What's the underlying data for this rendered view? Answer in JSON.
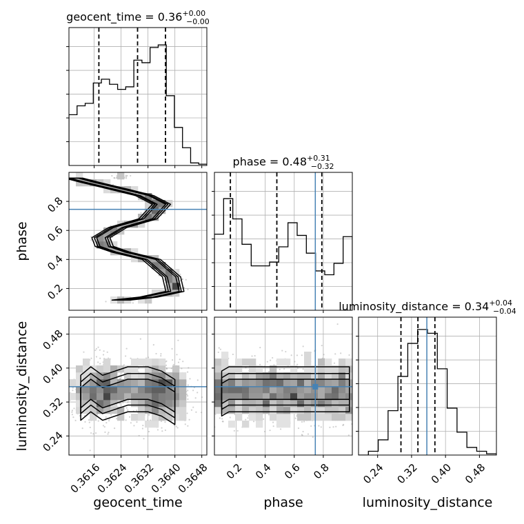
{
  "chart_data": {
    "type": "corner",
    "parameters": [
      "geocent_time",
      "phase",
      "luminosity_distance"
    ],
    "axis_labels": {
      "geocent_time": "geocent_time",
      "phase": "phase",
      "luminosity_distance": "luminosity_distance"
    },
    "ranges": {
      "geocent_time": [
        0.36085,
        0.36495
      ],
      "phase": [
        0.05,
        1.0
      ],
      "luminosity_distance": [
        0.195,
        0.52
      ]
    },
    "ticks": {
      "geocent_time": [
        "0.3616",
        "0.3624",
        "0.3632",
        "0.3640",
        "0.3648"
      ],
      "phase": [
        "0.2",
        "0.4",
        "0.6",
        "0.8"
      ],
      "luminosity_distance": [
        "0.24",
        "0.32",
        "0.40",
        "0.48"
      ]
    },
    "truth": {
      "phase": 0.745,
      "luminosity_distance": 0.356
    },
    "truth_color": "#4682b4",
    "grid": true,
    "marginals": [
      {
        "parameter": "geocent_time",
        "title_name": "geocent_time",
        "title_value": "0.36",
        "title_plus": "+0.00",
        "title_minus": "−0.00",
        "quantiles": [
          0.36174,
          0.36289,
          0.36372
        ],
        "hist": [
          0.4,
          0.47,
          0.49,
          0.65,
          0.68,
          0.64,
          0.6,
          0.62,
          0.83,
          0.81,
          0.93,
          0.95,
          0.55,
          0.3,
          0.14,
          0.02,
          0.01
        ],
        "hist_max": 1.0
      },
      {
        "parameter": "phase",
        "title_name": "phase",
        "title_value": "0.48",
        "title_plus": "+0.31",
        "title_minus": "−0.32",
        "quantiles": [
          0.16,
          0.48,
          0.79
        ],
        "hist": [
          0.6,
          0.88,
          0.72,
          0.52,
          0.35,
          0.35,
          0.38,
          0.5,
          0.69,
          0.59,
          0.45,
          0.31,
          0.28,
          0.37,
          0.58
        ],
        "hist_max": 1.0
      },
      {
        "parameter": "luminosity_distance",
        "title_name": "luminosity_distance",
        "title_value": "0.34",
        "title_plus": "+0.04",
        "title_minus": "−0.04",
        "quantiles": [
          0.295,
          0.335,
          0.375
        ],
        "hist": [
          0.0,
          0.03,
          0.12,
          0.35,
          0.62,
          0.88,
          0.99,
          0.96,
          0.68,
          0.37,
          0.18,
          0.06,
          0.03,
          0.01
        ],
        "hist_max": 1.0
      }
    ],
    "joint": [
      {
        "x": "geocent_time",
        "y": "phase",
        "description_points": [
          [
            0.361,
            0.96
          ],
          [
            0.3615,
            0.93
          ],
          [
            0.3624,
            0.88
          ],
          [
            0.3631,
            0.84
          ],
          [
            0.3636,
            0.78
          ],
          [
            0.3632,
            0.68
          ],
          [
            0.3623,
            0.62
          ],
          [
            0.3618,
            0.55
          ],
          [
            0.3619,
            0.49
          ],
          [
            0.3624,
            0.45
          ],
          [
            0.3633,
            0.4
          ],
          [
            0.3639,
            0.28
          ],
          [
            0.364,
            0.18
          ],
          [
            0.3632,
            0.14
          ],
          [
            0.3624,
            0.12
          ]
        ]
      },
      {
        "x": "geocent_time",
        "y": "luminosity_distance",
        "description_points": [
          [
            0.3612,
            0.33
          ],
          [
            0.3615,
            0.35
          ],
          [
            0.36185,
            0.33
          ],
          [
            0.3626,
            0.35
          ],
          [
            0.3632,
            0.35
          ],
          [
            0.3636,
            0.34
          ],
          [
            0.3638,
            0.33
          ],
          [
            0.364,
            0.32
          ]
        ]
      },
      {
        "x": "phase",
        "y": "luminosity_distance",
        "description_points": [
          [
            0.1,
            0.34
          ],
          [
            0.15,
            0.35
          ],
          [
            0.3,
            0.35
          ],
          [
            0.45,
            0.35
          ],
          [
            0.6,
            0.35
          ],
          [
            0.75,
            0.35
          ],
          [
            0.9,
            0.35
          ],
          [
            0.98,
            0.35
          ]
        ]
      }
    ]
  }
}
